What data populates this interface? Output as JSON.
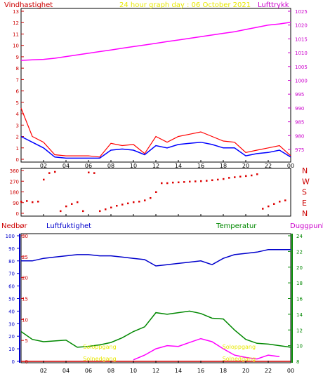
{
  "colors": {
    "background": "#ffffff",
    "frame": "#000000",
    "wind": "#ff0000",
    "wind_avg": "#0000ff",
    "pressure": "#ff00ff",
    "direction": "#dd0000",
    "humidity": "#0000cc",
    "temperature": "#008800",
    "dewpoint": "#ff00ff",
    "rain": "#cc0000",
    "title": "#e8e800",
    "daylight": "#e8e800",
    "dir_labels": "#cc0000"
  },
  "top_labels": {
    "wind": "Vindhastighet",
    "title": "24 hour graph day : 06 October 2021",
    "pressure": "Lufttrykk"
  },
  "bottom_labels": {
    "rain": "Nedbør",
    "humidity": "Luftfuktighet",
    "temperature": "Temperatur",
    "dewpoint": "Duggpunkt"
  },
  "daylight_labels": [
    "Soloppgang",
    "Solnedgang",
    "Soloppgang",
    "Solnedgang"
  ],
  "x_ticks": [
    "02",
    "04",
    "06",
    "08",
    "10",
    "12",
    "14",
    "16",
    "18",
    "20",
    "22",
    "00"
  ],
  "direction_ticks": [
    "360",
    "270",
    "180",
    "90",
    "0"
  ],
  "direction_names": [
    "N",
    "W",
    "S",
    "E",
    "N"
  ],
  "chart_data": [
    {
      "type": "line",
      "ylim_wind": [
        0,
        13
      ],
      "ylim_pressure": [
        975,
        1025
      ],
      "wind_ticks": [
        0,
        1,
        2,
        3,
        4,
        5,
        6,
        7,
        8,
        9,
        10,
        11,
        12,
        13
      ],
      "pressure_ticks": [
        975,
        980,
        985,
        990,
        995,
        1000,
        1005,
        1010,
        1015,
        1020,
        1025
      ],
      "x": [
        0,
        1,
        2,
        3,
        4,
        5,
        6,
        7,
        8,
        9,
        10,
        11,
        12,
        13,
        14,
        15,
        16,
        17,
        18,
        19,
        20,
        21,
        22,
        23,
        24
      ],
      "series": [
        {
          "values": [
            4.5,
            2.0,
            1.5,
            0.4,
            0.3,
            0.3,
            0.3,
            0.2,
            1.4,
            1.2,
            1.3,
            0.5,
            2.0,
            1.5,
            2.0,
            2.2,
            2.4,
            2.0,
            1.6,
            1.5,
            0.6,
            0.8,
            1.0,
            1.2,
            0.3
          ]
        },
        {
          "values": [
            2.0,
            1.5,
            1.0,
            0.2,
            0.1,
            0.1,
            0.1,
            0.1,
            0.8,
            0.9,
            0.8,
            0.4,
            1.2,
            1.0,
            1.3,
            1.4,
            1.5,
            1.3,
            1.0,
            1.0,
            0.3,
            0.5,
            0.6,
            0.8,
            0.2
          ]
        },
        {
          "values": [
            1007.2,
            1007.4,
            1007.6,
            1008.0,
            1008.6,
            1009.2,
            1009.8,
            1010.4,
            1011.0,
            1011.6,
            1012.2,
            1012.8,
            1013.4,
            1014.0,
            1014.6,
            1015.2,
            1015.8,
            1016.4,
            1017.0,
            1017.6,
            1018.4,
            1019.2,
            1020.0,
            1020.4,
            1021.0
          ]
        }
      ]
    },
    {
      "type": "scatter",
      "ylim": [
        0,
        360
      ],
      "x": [
        0,
        0.5,
        1,
        1.5,
        2,
        2.5,
        3,
        3.5,
        4,
        4.5,
        5,
        5.5,
        6,
        6.5,
        7,
        7.5,
        8,
        8.5,
        9,
        9.5,
        10,
        10.5,
        11,
        11.5,
        12,
        12.5,
        13,
        13.5,
        14,
        14.5,
        15,
        15.5,
        16,
        16.5,
        17,
        17.5,
        18,
        18.5,
        19,
        19.5,
        20,
        20.5,
        21,
        21.5,
        22,
        22.5,
        23,
        23.5
      ],
      "series": [
        {
          "values": [
            100,
            105,
            95,
            100,
            285,
            340,
            350,
            20,
            60,
            80,
            95,
            20,
            345,
            340,
            20,
            35,
            50,
            65,
            75,
            85,
            95,
            100,
            110,
            130,
            180,
            255,
            255,
            260,
            262,
            265,
            268,
            270,
            272,
            275,
            280,
            285,
            290,
            300,
            305,
            310,
            315,
            320,
            330,
            40,
            60,
            80,
            100,
            110
          ]
        }
      ]
    },
    {
      "type": "line",
      "ylim_humidity": [
        0,
        100
      ],
      "ylim_rain": [
        0,
        30
      ],
      "ylim_temperature": [
        8,
        24
      ],
      "humidity_ticks": [
        0,
        10,
        20,
        30,
        40,
        50,
        60,
        70,
        80,
        90,
        100
      ],
      "rain_ticks": [
        0,
        5,
        10,
        15,
        20,
        25,
        30
      ],
      "temperature_ticks": [
        8,
        10,
        12,
        14,
        16,
        18,
        20,
        22,
        24
      ],
      "x": [
        0,
        1,
        2,
        3,
        4,
        5,
        6,
        7,
        8,
        9,
        10,
        11,
        12,
        13,
        14,
        15,
        16,
        17,
        18,
        19,
        20,
        21,
        22,
        23,
        24
      ],
      "series": [
        {
          "values": [
            80,
            80,
            82,
            83,
            84,
            85,
            85,
            84,
            84,
            83,
            82,
            81,
            76,
            77,
            78,
            79,
            80,
            77,
            82,
            85,
            86,
            87,
            89,
            89,
            89
          ]
        },
        {
          "values": [
            11.8,
            10.8,
            10.5,
            10.6,
            10.7,
            9.8,
            9.9,
            10.1,
            10.4,
            11.0,
            11.8,
            12.4,
            14.2,
            14.0,
            14.2,
            14.4,
            14.1,
            13.5,
            13.4,
            12.0,
            10.8,
            10.3,
            10.2,
            10.0,
            9.8
          ]
        },
        {
          "values": [
            null,
            null,
            null,
            null,
            null,
            null,
            null,
            null,
            null,
            null,
            8.2,
            8.8,
            9.6,
            10.0,
            9.9,
            10.4,
            10.9,
            10.5,
            9.6,
            8.8,
            8.5,
            8.3,
            8.8,
            8.6,
            null
          ]
        },
        {
          "values": [
            0,
            0,
            0,
            0,
            0,
            0,
            0,
            0,
            0,
            0,
            0,
            0,
            0,
            0,
            0,
            0,
            0,
            0,
            0,
            0,
            0,
            0,
            0,
            0,
            0
          ]
        }
      ]
    }
  ]
}
